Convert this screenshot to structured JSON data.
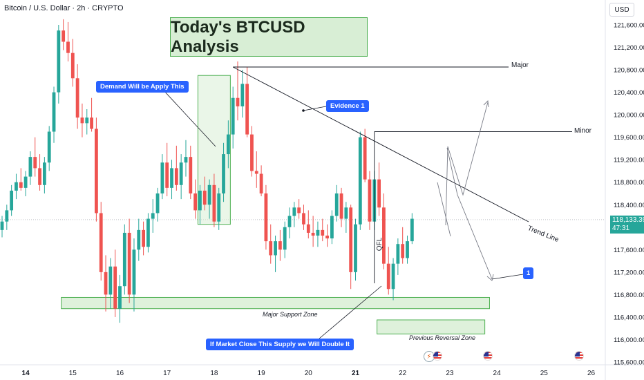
{
  "symbol": "Bitcoin / U.S. Dollar · 2h · CRYPTO",
  "currency_button": "USD",
  "title": "Today's BTCUSD Analysis",
  "last_price": "118,133.39",
  "countdown": "47:31",
  "annotations": {
    "demand": "Demand Will be Apply This",
    "evidence": "Evidence 1",
    "major": "Major",
    "minor": "Minor",
    "trend_line": "Trend Line",
    "qfl": "QFL",
    "major_support": "Major Support Zone",
    "previous_reversal": "Previous Reversal Zone",
    "market_close": "If Market Close This Supply  we Will Double It",
    "target": "1"
  },
  "icons": {
    "flag": "us-flag-icon",
    "event": "lightning-icon"
  },
  "colors": {
    "up": "#26a69a",
    "down": "#ef5350",
    "zone_fill": "#d8eed5",
    "zone_border": "#4caf50",
    "bubble": "#2962ff"
  },
  "chart_data": {
    "type": "candlestick",
    "timeframe": "2h",
    "ylim": [
      115600,
      121800
    ],
    "y_ticks": [
      121600,
      121200,
      120800,
      120400,
      120000,
      119600,
      119200,
      118800,
      118400,
      117600,
      117200,
      116800,
      116400,
      116000,
      115600
    ],
    "y_tick_labels": [
      "121,600.00",
      "121,200.00",
      "120,800.00",
      "120,400.00",
      "120,000.00",
      "119,600.00",
      "119,200.00",
      "118,800.00",
      "118,400.00",
      "117,600.00",
      "117,200.00",
      "116,800.00",
      "116,400.00",
      "116,000.00",
      "115,600.00"
    ],
    "x_ticks": [
      {
        "index": 5,
        "label": "14"
      },
      {
        "index": 15,
        "label": "15"
      },
      {
        "index": 25,
        "label": "16"
      },
      {
        "index": 35,
        "label": "17"
      },
      {
        "index": 45,
        "label": "18"
      },
      {
        "index": 55,
        "label": "19"
      },
      {
        "index": 65,
        "label": "20"
      },
      {
        "index": 75,
        "label": "21"
      },
      {
        "index": 85,
        "label": "22"
      },
      {
        "index": 95,
        "label": "23"
      },
      {
        "index": 105,
        "label": "24"
      },
      {
        "index": 115,
        "label": "25"
      },
      {
        "index": 125,
        "label": "26"
      }
    ],
    "candles": [
      [
        117950,
        118200,
        117820,
        118100
      ],
      [
        118100,
        118400,
        117950,
        118300
      ],
      [
        118300,
        118750,
        118200,
        118650
      ],
      [
        118650,
        118950,
        118500,
        118800
      ],
      [
        118800,
        119050,
        118650,
        118700
      ],
      [
        118700,
        119000,
        118550,
        118900
      ],
      [
        118900,
        119350,
        118750,
        119250
      ],
      [
        119250,
        119600,
        118900,
        119050
      ],
      [
        119050,
        119300,
        118650,
        118750
      ],
      [
        118750,
        119250,
        118600,
        119150
      ],
      [
        119150,
        119800,
        119000,
        119700
      ],
      [
        119700,
        120500,
        119500,
        120400
      ],
      [
        120400,
        121600,
        120200,
        121500
      ],
      [
        121500,
        121700,
        121150,
        121300
      ],
      [
        121300,
        121650,
        120950,
        121100
      ],
      [
        121100,
        121350,
        120500,
        120650
      ],
      [
        120650,
        120900,
        119750,
        119950
      ],
      [
        119950,
        120200,
        119600,
        119850
      ],
      [
        119850,
        120100,
        119650,
        119950
      ],
      [
        119950,
        120300,
        119700,
        119750
      ],
      [
        119750,
        119950,
        118100,
        118250
      ],
      [
        118250,
        118450,
        117050,
        117200
      ],
      [
        117200,
        117500,
        116500,
        116800
      ],
      [
        116800,
        117450,
        116550,
        117300
      ],
      [
        117300,
        117600,
        116400,
        116550
      ],
      [
        116550,
        117150,
        116300,
        116950
      ],
      [
        116950,
        118050,
        116800,
        117900
      ],
      [
        117900,
        118150,
        116650,
        116800
      ],
      [
        116800,
        117800,
        116500,
        117600
      ],
      [
        117600,
        118150,
        117400,
        117950
      ],
      [
        117950,
        118100,
        117500,
        117650
      ],
      [
        117650,
        118250,
        117550,
        118150
      ],
      [
        118150,
        118500,
        117900,
        118250
      ],
      [
        118250,
        118700,
        118100,
        118600
      ],
      [
        118600,
        119300,
        118500,
        119150
      ],
      [
        119150,
        119500,
        118550,
        118700
      ],
      [
        118700,
        119200,
        118500,
        119050
      ],
      [
        119050,
        119450,
        118650,
        118750
      ],
      [
        118750,
        119300,
        118500,
        119150
      ],
      [
        119150,
        119550,
        118900,
        119250
      ],
      [
        119250,
        119450,
        118500,
        118600
      ],
      [
        118600,
        118850,
        118150,
        118300
      ],
      [
        118300,
        118750,
        118050,
        118650
      ],
      [
        118650,
        118900,
        118300,
        118400
      ],
      [
        118400,
        118850,
        118150,
        118750
      ],
      [
        118750,
        118950,
        118000,
        118100
      ],
      [
        118100,
        118700,
        117950,
        118600
      ],
      [
        118600,
        119500,
        118450,
        119300
      ],
      [
        119300,
        119900,
        119050,
        119650
      ],
      [
        119650,
        120500,
        119400,
        120300
      ],
      [
        120300,
        120950,
        119900,
        120150
      ],
      [
        120150,
        120800,
        119950,
        120550
      ],
      [
        120550,
        120850,
        119600,
        119650
      ],
      [
        119650,
        119800,
        118900,
        119000
      ],
      [
        119000,
        119350,
        118700,
        118950
      ],
      [
        118950,
        119100,
        118550,
        118600
      ],
      [
        118600,
        118750,
        117600,
        117750
      ],
      [
        117750,
        118050,
        117350,
        117500
      ],
      [
        117500,
        117850,
        117200,
        117750
      ],
      [
        117750,
        117950,
        117400,
        117600
      ],
      [
        117600,
        118100,
        117450,
        118000
      ],
      [
        118000,
        118350,
        117800,
        118200
      ],
      [
        118200,
        118450,
        118000,
        118350
      ],
      [
        118350,
        118500,
        118150,
        118250
      ],
      [
        118250,
        118400,
        117950,
        118050
      ],
      [
        118050,
        118300,
        117800,
        117900
      ],
      [
        117900,
        118200,
        117650,
        117850
      ],
      [
        117850,
        118100,
        117650,
        117950
      ],
      [
        117950,
        118150,
        117750,
        117850
      ],
      [
        117850,
        118050,
        117650,
        117800
      ],
      [
        117800,
        118300,
        117700,
        118200
      ],
      [
        118200,
        118750,
        118100,
        118600
      ],
      [
        118600,
        118700,
        118000,
        118150
      ],
      [
        118150,
        118450,
        117900,
        118350
      ],
      [
        118350,
        118400,
        116900,
        117200
      ],
      [
        117200,
        118150,
        117050,
        118050
      ],
      [
        118050,
        119700,
        117950,
        119600
      ],
      [
        119600,
        119750,
        118800,
        118850
      ],
      [
        118850,
        119000,
        117950,
        118100
      ],
      [
        118100,
        119000,
        117950,
        118850
      ],
      [
        118850,
        119150,
        118200,
        118350
      ],
      [
        118350,
        118600,
        117250,
        117350
      ],
      [
        117350,
        117650,
        116800,
        116900
      ],
      [
        116900,
        117450,
        116700,
        117350
      ],
      [
        117350,
        117800,
        117150,
        117700
      ],
      [
        117700,
        118000,
        117350,
        117450
      ],
      [
        117450,
        117850,
        117350,
        117750
      ],
      [
        117750,
        118250,
        117700,
        118150
      ]
    ],
    "zones": [
      {
        "name": "Major Support Zone",
        "low": 116550,
        "high": 116750,
        "start_index": 13,
        "end_index": 103
      },
      {
        "name": "Previous Reversal Zone",
        "low": 116100,
        "high": 116350,
        "start_index": 80,
        "end_index": 102
      },
      {
        "name": "Demand",
        "low": 118050,
        "high": 120700,
        "start_index": 42,
        "end_index": 48
      }
    ],
    "levels": [
      {
        "name": "Major",
        "price": 120850,
        "start_index": 49
      },
      {
        "name": "Minor",
        "price": 119700,
        "start_index": 79
      }
    ],
    "trend_line": {
      "from_index": 49,
      "from_price": 120850,
      "to_index": 111,
      "to_price": 118150
    },
    "last_price": 118133.39
  }
}
